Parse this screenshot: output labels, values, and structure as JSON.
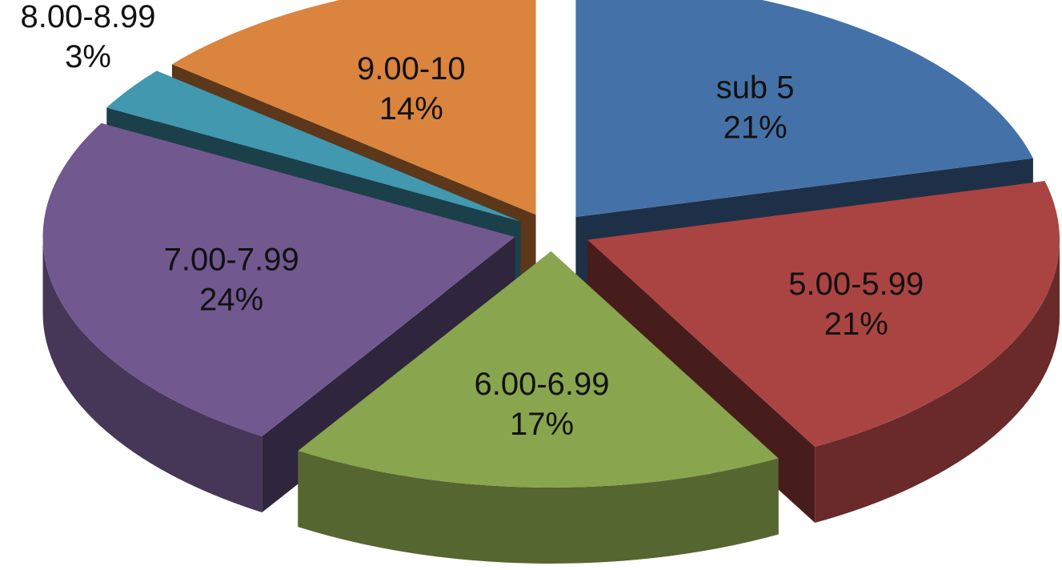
{
  "chart_data": {
    "type": "pie",
    "title": "",
    "style": "3d-exploded",
    "legend": "none",
    "slices": [
      {
        "label": "sub 5",
        "value": 21,
        "percent_label": "21%",
        "color": "#4472A8"
      },
      {
        "label": "5.00-5.99",
        "value": 21,
        "percent_label": "21%",
        "color": "#AA4442"
      },
      {
        "label": "6.00-6.99",
        "value": 17,
        "percent_label": "17%",
        "color": "#89A54E"
      },
      {
        "label": "7.00-7.99",
        "value": 24,
        "percent_label": "24%",
        "color": "#71588F"
      },
      {
        "label": "8.00-8.99",
        "value": 3,
        "percent_label": "3%",
        "color": "#4198AF"
      },
      {
        "label": "9.00-10",
        "value": 14,
        "percent_label": "14%",
        "color": "#DB843D"
      }
    ]
  }
}
